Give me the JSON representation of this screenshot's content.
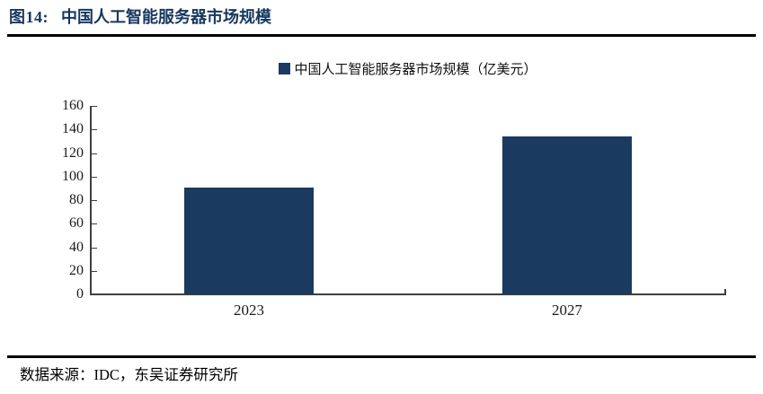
{
  "figure": {
    "label": "图14:",
    "title": "中国人工智能服务器市场规模"
  },
  "legend": {
    "marker_icon": "square-swatch-icon",
    "text": "中国人工智能服务器市场规模（亿美元）"
  },
  "footer": {
    "source": "数据来源：IDC，东吴证券研究所"
  },
  "colors": {
    "bar": "#1B3A5F",
    "title_navy": "#17375E",
    "axis": "#3f3f3f",
    "rule": "#000000"
  },
  "chart_data": {
    "type": "bar",
    "categories": [
      "2023",
      "2027"
    ],
    "values": [
      91,
      134
    ],
    "series": [
      {
        "name": "中国人工智能服务器市场规模（亿美元）",
        "values": [
          91,
          134
        ]
      }
    ],
    "title": "中国人工智能服务器市场规模",
    "xlabel": "",
    "ylabel": "亿美元",
    "ylim": [
      0,
      160
    ],
    "yticks": [
      0,
      20,
      40,
      60,
      80,
      100,
      120,
      140,
      160
    ],
    "grid": false,
    "legend_position": "top-center",
    "bar_color": "#1B3A5F"
  }
}
